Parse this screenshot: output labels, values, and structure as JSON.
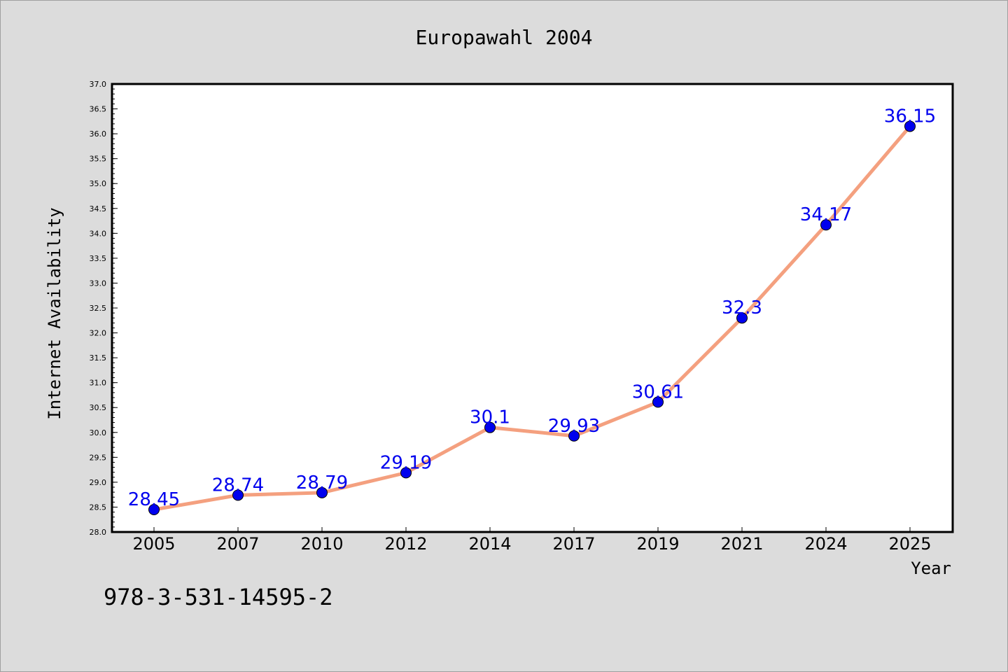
{
  "chart_data": {
    "type": "line",
    "title": "Europawahl 2004",
    "xlabel": "Year",
    "ylabel": "Internet Availability",
    "categories": [
      "2005",
      "2007",
      "2010",
      "2012",
      "2014",
      "2017",
      "2019",
      "2021",
      "2024",
      "2025"
    ],
    "series": [
      {
        "values": [
          28.45,
          28.74,
          28.79,
          29.19,
          30.1,
          29.93,
          30.61,
          32.3,
          34.17,
          36.15
        ]
      }
    ],
    "ylim": [
      28.0,
      37.0
    ],
    "yticks": [
      "28.0",
      "28.5",
      "29.0",
      "29.5",
      "30.0",
      "30.5",
      "31.0",
      "31.5",
      "32.0",
      "32.5",
      "33.0",
      "33.5",
      "34.0",
      "34.5",
      "35.0",
      "35.5",
      "36.0",
      "36.5",
      "37.0"
    ],
    "data_labels": [
      "28.45",
      "28.74",
      "28.79",
      "29.19",
      "30.1",
      "29.93",
      "30.61",
      "32.3",
      "34.17",
      "36.15"
    ],
    "grid": false,
    "line_color": "#f4a07f",
    "marker_color": "#0000ee",
    "label_color": "#0000ee"
  },
  "footer_text": "978-3-531-14595-2"
}
